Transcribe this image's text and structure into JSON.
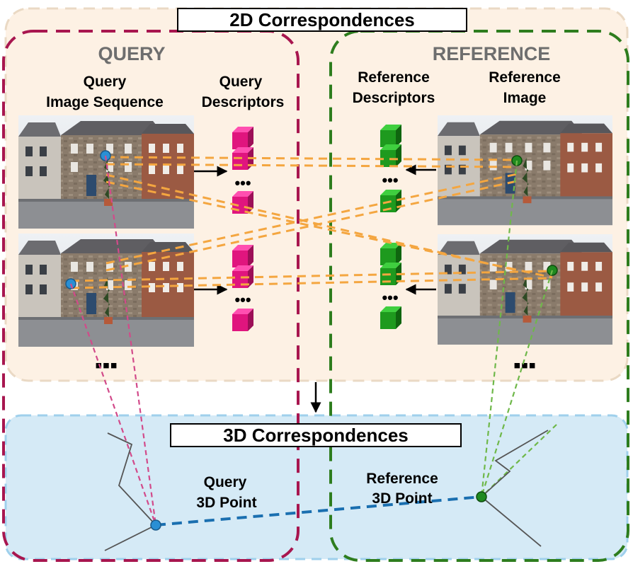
{
  "panels": {
    "top_title": "2D Correspondences",
    "bottom_title": "3D Correspondences"
  },
  "query": {
    "header": "QUERY",
    "sequence_label": [
      "Query",
      "Image Sequence"
    ],
    "descriptors_label": [
      "Query",
      "Descriptors"
    ],
    "point_label": [
      "Query",
      "3D Point"
    ],
    "more_marker": "▪▪▪",
    "color": "#a8164f"
  },
  "reference": {
    "header": "REFERENCE",
    "descriptors_label": [
      "Reference",
      "Descriptors"
    ],
    "image_label": [
      "Reference",
      "Image"
    ],
    "point_label": [
      "Reference",
      "3D Point"
    ],
    "more_marker": "▪▪▪",
    "color": "#2e7d1e"
  },
  "ellipsis": "•••",
  "colors": {
    "top_panel": "#fdf1e4",
    "bottom_panel": "#d5eaf6",
    "query_descriptor": "#e0157e",
    "reference_descriptor": "#1e9a1e",
    "correspondence_line": "#f4a640",
    "query_point": "#2a8fd4",
    "reference_point": "#1f8a1f",
    "link_3d": "#1a6fb0"
  }
}
